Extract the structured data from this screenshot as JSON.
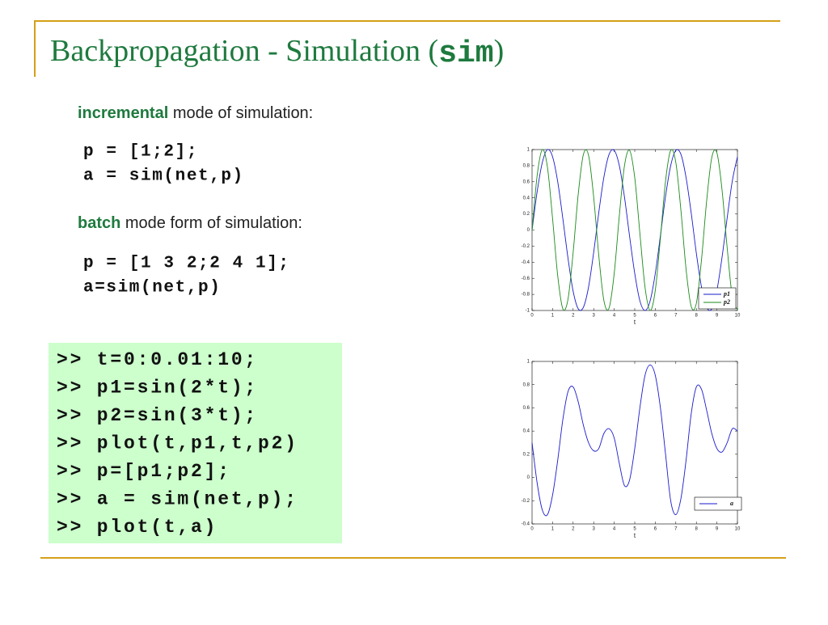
{
  "title_parts": [
    "Backpropagation - Simulation (",
    "sim",
    ")"
  ],
  "incremental": {
    "keyword": "incremental",
    "rest": " mode of simulation:"
  },
  "incremental_code": [
    "p = [1;2];",
    "a = sim(net,p)"
  ],
  "batch": {
    "keyword": "batch",
    "rest": " mode form of simulation:"
  },
  "batch_code": [
    "p = [1 3 2;2 4 1];",
    "a=sim(net,p)"
  ],
  "console": [
    ">> t=0:0.01:10;",
    ">> p1=sin(2*t);",
    ">> p2=sin(3*t);",
    ">> plot(t,p1,t,p2)",
    ">> p=[p1;p2];",
    ">> a = sim(net,p);",
    ">> plot(t,a)"
  ],
  "chart_data": [
    {
      "type": "line",
      "xlabel": "t",
      "x": [
        0,
        0.25,
        0.5,
        0.75,
        1,
        1.25,
        1.5,
        1.75,
        2,
        2.25,
        2.5,
        2.75,
        3,
        3.25,
        3.5,
        3.75,
        4,
        4.25,
        4.5,
        4.75,
        5,
        5.25,
        5.5,
        5.75,
        6,
        6.25,
        6.5,
        6.75,
        7,
        7.25,
        7.5,
        7.75,
        8,
        8.25,
        8.5,
        8.75,
        9,
        9.25,
        9.5,
        9.75,
        10
      ],
      "xlim": [
        0,
        10
      ],
      "xticks": [
        0,
        1,
        2,
        3,
        4,
        5,
        6,
        7,
        8,
        9,
        10
      ],
      "ylim": [
        -1,
        1
      ],
      "yticks": [
        -1,
        -0.8,
        -0.6,
        -0.4,
        -0.2,
        0,
        0.2,
        0.4,
        0.6,
        0.8,
        1
      ],
      "legend": "lower right",
      "series": [
        {
          "name": "p1",
          "color": "#1a1acc",
          "values": [
            0,
            0.48,
            0.84,
            1.0,
            0.91,
            0.6,
            0.14,
            -0.35,
            -0.76,
            -0.98,
            -0.96,
            -0.71,
            -0.28,
            0.22,
            0.66,
            0.94,
            0.99,
            0.8,
            0.41,
            -0.08,
            -0.54,
            -0.88,
            -1.0,
            -0.88,
            -0.54,
            -0.07,
            0.42,
            0.8,
            0.99,
            0.94,
            0.65,
            0.21,
            -0.29,
            -0.71,
            -0.96,
            -0.98,
            -0.75,
            -0.34,
            0.15,
            0.61,
            0.91
          ]
        },
        {
          "name": "p2",
          "color": "#1a8a1a",
          "values": [
            0,
            0.68,
            1.0,
            0.78,
            0.14,
            -0.57,
            -0.98,
            -0.86,
            -0.28,
            0.45,
            0.94,
            0.93,
            0.41,
            -0.32,
            -0.88,
            -0.97,
            -0.54,
            0.18,
            0.8,
            0.99,
            0.65,
            -0.04,
            -0.71,
            -1.0,
            -0.75,
            -0.1,
            0.61,
            0.99,
            0.84,
            0.24,
            -0.49,
            -0.95,
            -0.91,
            -0.37,
            0.36,
            0.9,
            0.96,
            0.5,
            -0.22,
            -0.83,
            -0.99
          ]
        }
      ]
    },
    {
      "type": "line",
      "xlabel": "t",
      "x": [
        0,
        0.25,
        0.5,
        0.75,
        1,
        1.25,
        1.5,
        1.75,
        2,
        2.25,
        2.5,
        2.75,
        3,
        3.25,
        3.5,
        3.75,
        4,
        4.25,
        4.5,
        4.75,
        5,
        5.25,
        5.5,
        5.75,
        6,
        6.25,
        6.5,
        6.75,
        7,
        7.25,
        7.5,
        7.75,
        8,
        8.25,
        8.5,
        8.75,
        9,
        9.25,
        9.5,
        9.75,
        10
      ],
      "xlim": [
        0,
        10
      ],
      "xticks": [
        0,
        1,
        2,
        3,
        4,
        5,
        6,
        7,
        8,
        9,
        10
      ],
      "ylim": [
        -0.4,
        1
      ],
      "yticks": [
        -0.4,
        -0.2,
        0,
        0.2,
        0.4,
        0.6,
        0.8,
        1
      ],
      "legend": "lower right",
      "series": [
        {
          "name": "a",
          "color": "#1a1acc",
          "values": [
            0.3,
            -0.05,
            -0.28,
            -0.32,
            -0.15,
            0.15,
            0.5,
            0.74,
            0.78,
            0.65,
            0.45,
            0.3,
            0.23,
            0.25,
            0.38,
            0.42,
            0.34,
            0.12,
            -0.07,
            -0.02,
            0.25,
            0.6,
            0.88,
            0.97,
            0.88,
            0.6,
            0.2,
            -0.2,
            -0.32,
            -0.18,
            0.15,
            0.55,
            0.78,
            0.76,
            0.58,
            0.38,
            0.25,
            0.22,
            0.3,
            0.42,
            0.4
          ]
        }
      ]
    }
  ]
}
